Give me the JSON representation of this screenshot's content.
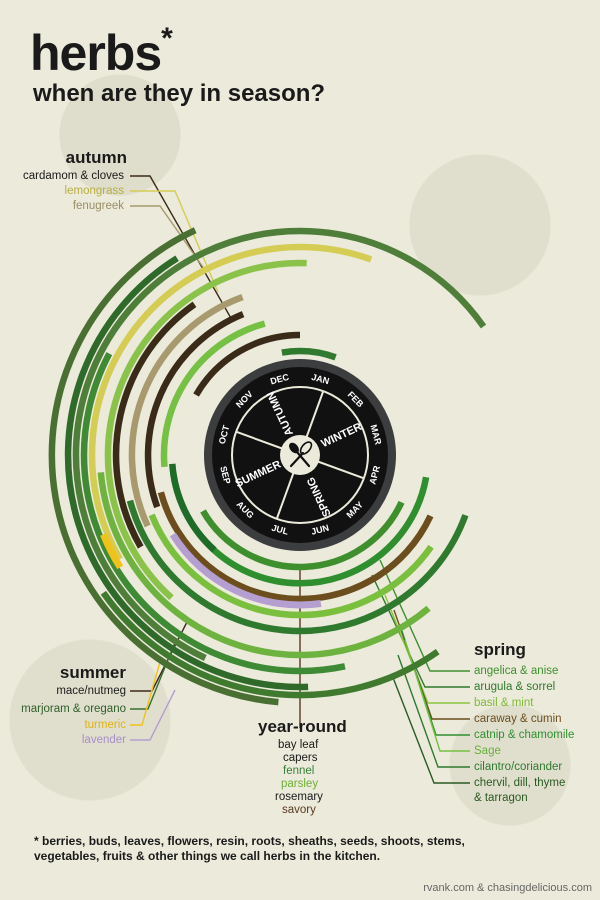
{
  "title": "herbs",
  "title_mark": "*",
  "subtitle": "when are they in season?",
  "center_icon": "spoon-and-whisk-icon",
  "months": [
    "JAN",
    "FEB",
    "MAR",
    "APR",
    "MAY",
    "JUN",
    "JUL",
    "AUG",
    "SEP",
    "OCT",
    "NOV",
    "DEC"
  ],
  "seasons": [
    "WINTER",
    "SPRING",
    "SUMMER",
    "AUTUMN"
  ],
  "groups": {
    "autumn": {
      "heading": "autumn",
      "items": [
        {
          "label": "cardamom & cloves",
          "color": "#3a2a18"
        },
        {
          "label": "lemongrass",
          "color": "#d5cc54"
        },
        {
          "label": "fenugreek",
          "color": "#a89a6e"
        }
      ]
    },
    "summer": {
      "heading": "summer",
      "items": [
        {
          "label": "mace/nutmeg",
          "color": "#3a2a18"
        },
        {
          "label": "marjoram & oregano",
          "color": "#3a6e2e"
        },
        {
          "label": "turmeric",
          "color": "#f0c31c"
        },
        {
          "label": "lavender",
          "color": "#b49fd0"
        }
      ]
    },
    "yearround": {
      "heading": "year-round",
      "items": [
        {
          "label": "bay leaf",
          "color": "#1a1a1a"
        },
        {
          "label": "capers",
          "color": "#1a1a1a"
        },
        {
          "label": "fennel",
          "color": "#3a7e3a"
        },
        {
          "label": "parsley",
          "color": "#7bbf3e"
        },
        {
          "label": "rosemary",
          "color": "#1a1a1a"
        },
        {
          "label": "savory",
          "color": "#5a3a20"
        }
      ]
    },
    "spring": {
      "heading": "spring",
      "items": [
        {
          "label": "angelica & anise",
          "color": "#3f8f2f"
        },
        {
          "label": "arugula & sorrel",
          "color": "#2f7a2f"
        },
        {
          "label": "basil & mint",
          "color": "#8cc63e"
        },
        {
          "label": "caraway & cumin",
          "color": "#6b4d1e"
        },
        {
          "label": "catnip & chamomile",
          "color": "#2f8f2f"
        },
        {
          "label": "Sage",
          "color": "#76c043"
        },
        {
          "label": "cilantro/coriander",
          "color": "#2f7a2f"
        },
        {
          "label": "chervil, dill, thyme",
          "color": "#2a5a22"
        },
        {
          "label": "& tarragon",
          "color": "#2a5a22"
        }
      ]
    }
  },
  "footnote": "* berries, buds, leaves, flowers, resin, roots, sheaths, seeds, shoots, stems, vegetables, fruits & other things we call herbs in the kitchen.",
  "credit": "rvank.com & chasingdelicious.com"
}
